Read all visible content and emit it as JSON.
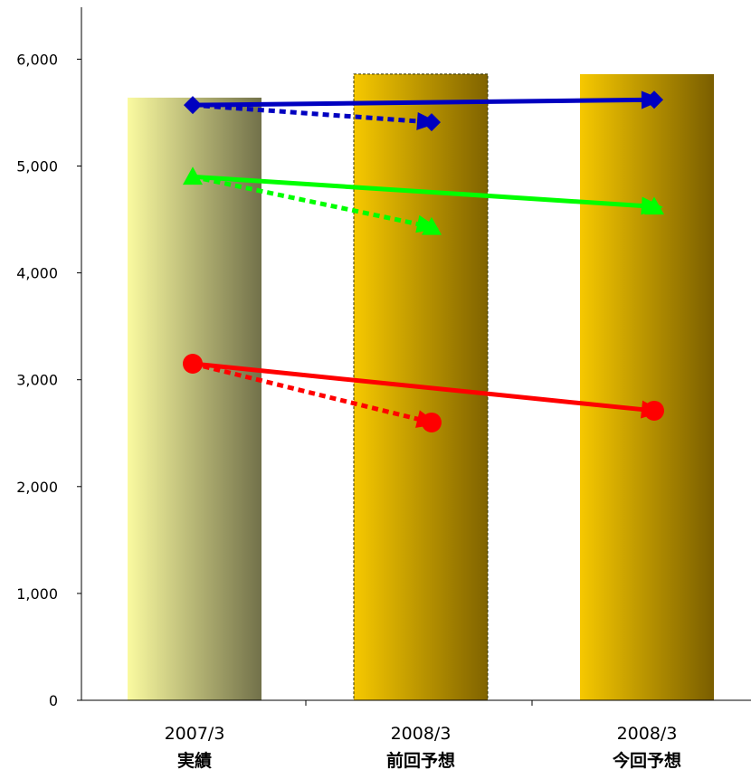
{
  "chart_data": {
    "type": "bar",
    "categories": [
      {
        "line1": "2007/3",
        "line2": "実績"
      },
      {
        "line1": "2008/3",
        "line2": "前回予想"
      },
      {
        "line1": "2008/3",
        "line2": "今回予想"
      }
    ],
    "values": [
      5640,
      5860,
      5860
    ],
    "ylim": [
      0,
      6500
    ],
    "yticks": [
      0,
      1000,
      2000,
      3000,
      4000,
      5000,
      6000
    ],
    "ytick_labels": [
      "0",
      "1,000",
      "2,000",
      "3,000",
      "4,000",
      "5,000",
      "6,000"
    ],
    "bar_styles": [
      {
        "from": "#fafaa0",
        "to": "#72714a",
        "dashed_border": false
      },
      {
        "from": "#f6c800",
        "to": "#806300",
        "dashed_border": true
      },
      {
        "from": "#f6c800",
        "to": "#7a5e00",
        "dashed_border": false
      }
    ],
    "lines": [
      {
        "color": "#0000c0",
        "marker": "diamond",
        "solid": {
          "from": [
            0,
            5570
          ],
          "to": [
            2,
            5620
          ]
        },
        "dotted": {
          "from": [
            0,
            5570
          ],
          "to": [
            1,
            5410
          ]
        }
      },
      {
        "color": "#00ff00",
        "marker": "triangle",
        "solid": {
          "from": [
            0,
            4900
          ],
          "to": [
            2,
            4620
          ]
        },
        "dotted": {
          "from": [
            0,
            4900
          ],
          "to": [
            1,
            4430
          ]
        }
      },
      {
        "color": "#ff0000",
        "marker": "circle",
        "solid": {
          "from": [
            0,
            3150
          ],
          "to": [
            2,
            2710
          ]
        },
        "dotted": {
          "from": [
            0,
            3150
          ],
          "to": [
            1,
            2600
          ]
        }
      }
    ],
    "grid": false,
    "legend": "none"
  }
}
